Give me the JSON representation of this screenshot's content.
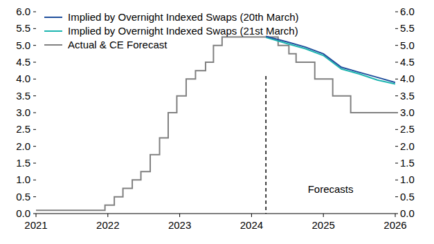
{
  "chart_data": {
    "type": "line",
    "xlim": [
      2021,
      2026
    ],
    "xticks": [
      2021,
      2022,
      2023,
      2024,
      2025,
      2026
    ],
    "ylim": [
      0,
      6
    ],
    "yticks": [
      {
        "value": 0,
        "label": "0.0"
      },
      0.5,
      {
        "value": 1,
        "label": "1.0"
      },
      1.5,
      {
        "value": 2,
        "label": "2.0"
      },
      2.5,
      {
        "value": 3,
        "label": "3.0"
      },
      3.5,
      {
        "value": 4,
        "label": "4.0"
      },
      4.5,
      {
        "value": 5,
        "label": "5.0"
      },
      5.5,
      {
        "value": 6,
        "label": "6.0"
      }
    ],
    "y2lim": [
      0,
      6
    ],
    "y2ticks": [
      {
        "value": 0,
        "label": "0.0"
      },
      0.5,
      {
        "value": 1,
        "label": "1.0"
      },
      1.5,
      {
        "value": 2,
        "label": "2.0"
      },
      2.5,
      {
        "value": 3,
        "label": "3.0"
      },
      3.5,
      {
        "value": 4,
        "label": "4.0"
      },
      4.5,
      {
        "value": 5,
        "label": "5.0"
      },
      5.5,
      {
        "value": 6,
        "label": "6.0"
      }
    ],
    "grid": false,
    "legend": "upper left",
    "annotations": [
      {
        "text": "Forecasts",
        "x": 2024.2
      }
    ],
    "series": [
      {
        "name": "Implied by Overnight Indexed Swaps (20th March)",
        "color": "#1f4e9c",
        "line_style": "solid",
        "x": [
          2024.2,
          2024.5,
          2024.75,
          2025.0,
          2025.25,
          2025.5,
          2025.75,
          2026.0
        ],
        "values": [
          5.27,
          5.1,
          4.95,
          4.75,
          4.35,
          4.2,
          4.05,
          3.9
        ]
      },
      {
        "name": "Implied by Overnight Indexed Swaps (21st March)",
        "color": "#1cb5b0",
        "line_style": "solid",
        "x": [
          2024.2,
          2024.5,
          2024.75,
          2025.0,
          2025.25,
          2025.5,
          2025.75,
          2026.0
        ],
        "values": [
          5.24,
          5.05,
          4.9,
          4.7,
          4.3,
          4.15,
          3.97,
          3.85
        ]
      },
      {
        "name": "Actual & CE Forecast",
        "color": "#808080",
        "line_style": "step",
        "x": [
          2021.0,
          2021.96,
          2022.09,
          2022.21,
          2022.34,
          2022.46,
          2022.59,
          2022.72,
          2022.84,
          2022.96,
          2023.09,
          2023.22,
          2023.36,
          2023.47,
          2023.59,
          2024.37,
          2024.52,
          2024.62,
          2024.88,
          2025.13,
          2025.38,
          2026.0
        ],
        "values": [
          0.1,
          0.25,
          0.5,
          0.75,
          1.0,
          1.25,
          1.75,
          2.25,
          3.0,
          3.5,
          4.0,
          4.25,
          4.5,
          5.0,
          5.25,
          5.0,
          4.75,
          4.5,
          4.0,
          3.5,
          3.0,
          3.0
        ]
      }
    ]
  }
}
